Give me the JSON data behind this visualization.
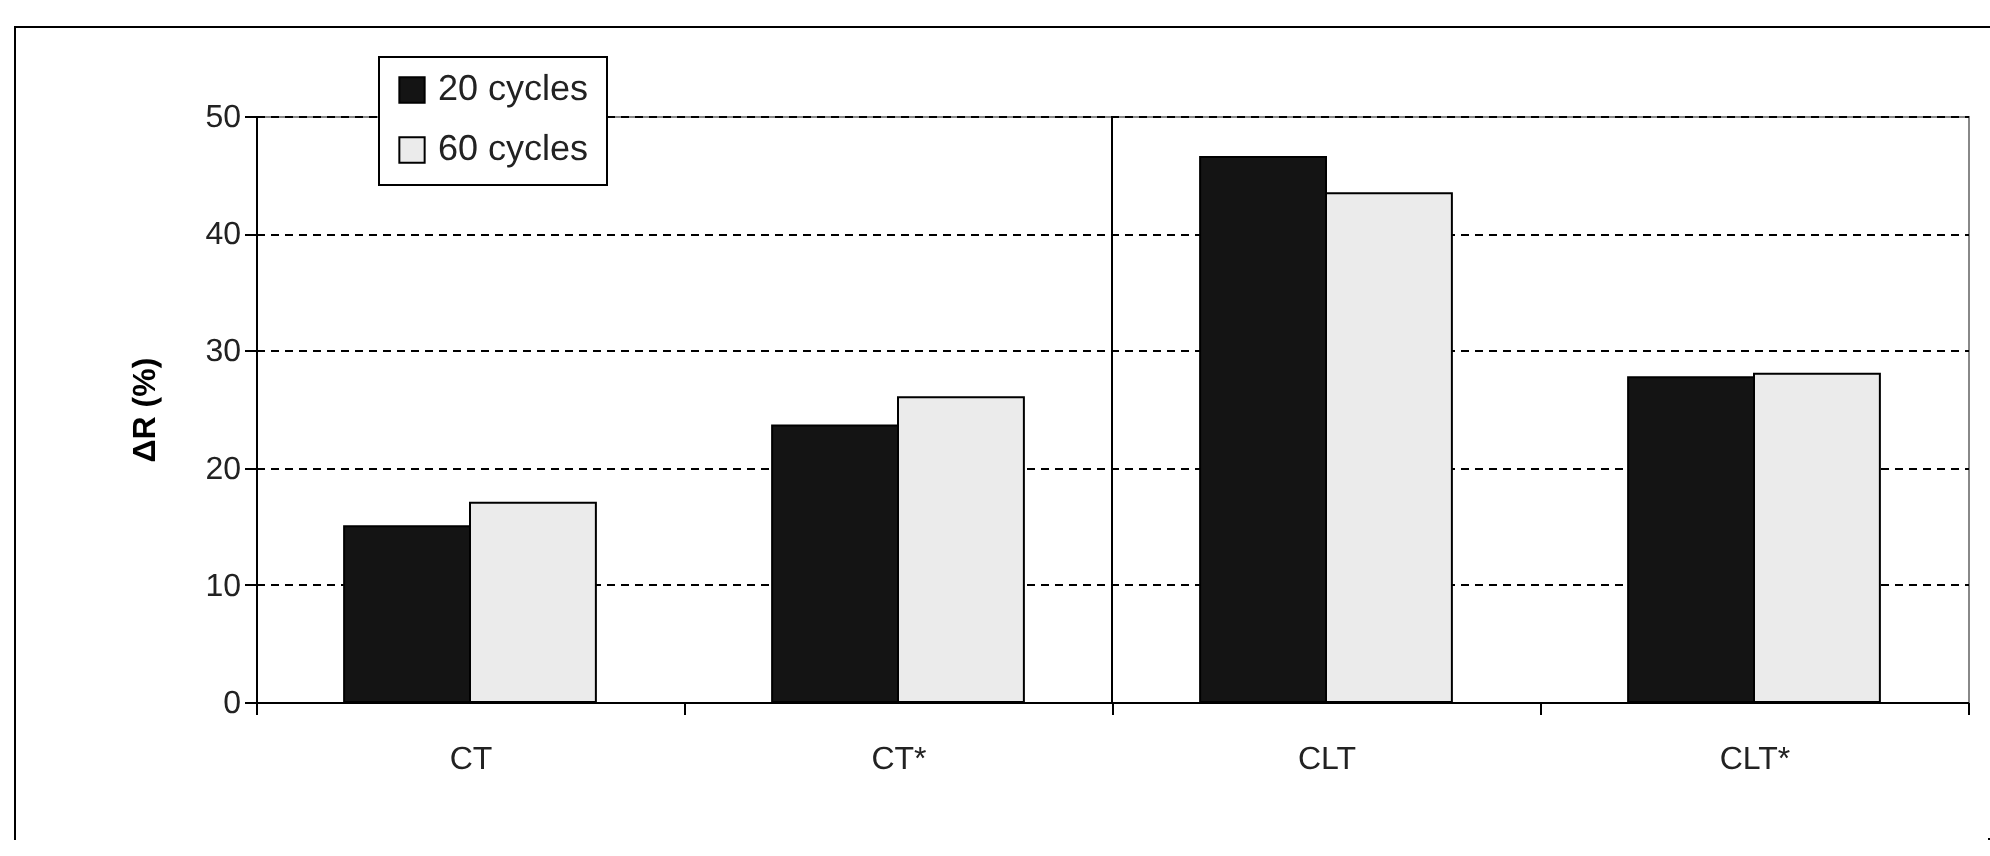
{
  "chart_data": {
    "type": "bar",
    "ylabel": "ΔR (%)",
    "categories": [
      "CT",
      "CT*",
      "CLT",
      "CLT*"
    ],
    "series": [
      {
        "name": "20 cycles",
        "color": "#141414",
        "values": [
          15,
          23.6,
          46.5,
          27.7
        ]
      },
      {
        "name": "60 cycles",
        "color": "#ebebeb",
        "values": [
          17,
          26,
          43.4,
          28
        ]
      }
    ],
    "ylim": [
      0,
      50
    ],
    "yticks": [
      0,
      10,
      20,
      30,
      40,
      50
    ],
    "grid": "y",
    "legend": "top left",
    "ref_lines": [
      {
        "axis": "x",
        "value": "CLT",
        "color": "#000000"
      }
    ]
  }
}
